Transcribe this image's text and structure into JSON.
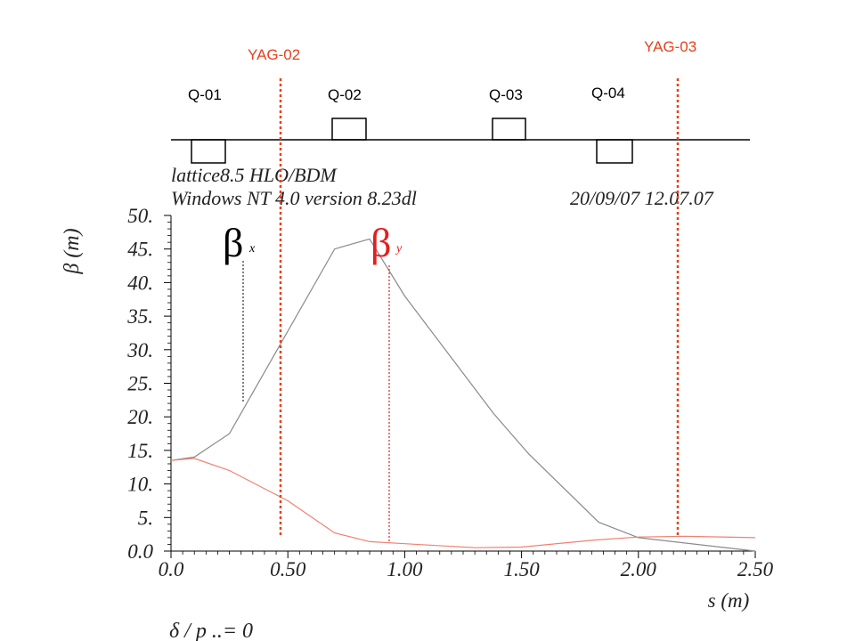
{
  "quads": {
    "labels": [
      "Q-01",
      "Q-02",
      "Q-03",
      "Q-04"
    ]
  },
  "screens": {
    "labels": [
      "YAG-02",
      "YAG-03"
    ],
    "color": "#e8401c"
  },
  "header": {
    "line1": "lattice8.5 HLO/BDM",
    "line2": "Windows NT 4.0 version 8.23dl",
    "date": "20/09/07   12.07.07"
  },
  "chart_data": {
    "type": "line",
    "xlabel": "s (m)",
    "ylabel": "β (m)",
    "xlim": [
      0.0,
      2.5
    ],
    "ylim": [
      0.0,
      50.0
    ],
    "x_tick_labels": [
      "0.0",
      "0.50",
      "1.00",
      "1.50",
      "2.00",
      "2.50"
    ],
    "y_tick_labels": [
      "0.0",
      "5.",
      "10.",
      "15.",
      "20.",
      "25.",
      "30.",
      "35.",
      "40.",
      "45.",
      "50."
    ],
    "series": [
      {
        "name": "βx",
        "color": "#8a8a8a",
        "x": [
          0.0,
          0.1,
          0.25,
          0.7,
          0.85,
          1.0,
          1.38,
          1.53,
          1.83,
          2.0,
          2.5
        ],
        "y": [
          13.5,
          14.0,
          17.5,
          45.0,
          46.5,
          38.0,
          20.5,
          14.5,
          4.3,
          2.0,
          0.0
        ]
      },
      {
        "name": "βy",
        "color": "#f08070",
        "x": [
          0.0,
          0.1,
          0.25,
          0.5,
          0.7,
          0.85,
          1.0,
          1.3,
          1.5,
          1.8,
          2.0,
          2.2,
          2.5
        ],
        "y": [
          13.5,
          13.8,
          12.0,
          7.5,
          2.7,
          1.4,
          1.1,
          0.5,
          0.6,
          1.6,
          2.1,
          2.2,
          2.0
        ]
      }
    ],
    "legend": {
      "beta_x": {
        "symbol": "β",
        "sub": "x",
        "color": "#000000"
      },
      "beta_y": {
        "symbol": "β",
        "sub": "y",
        "color": "#e02020"
      }
    }
  },
  "bottom_text": "δ / p ..= 0"
}
